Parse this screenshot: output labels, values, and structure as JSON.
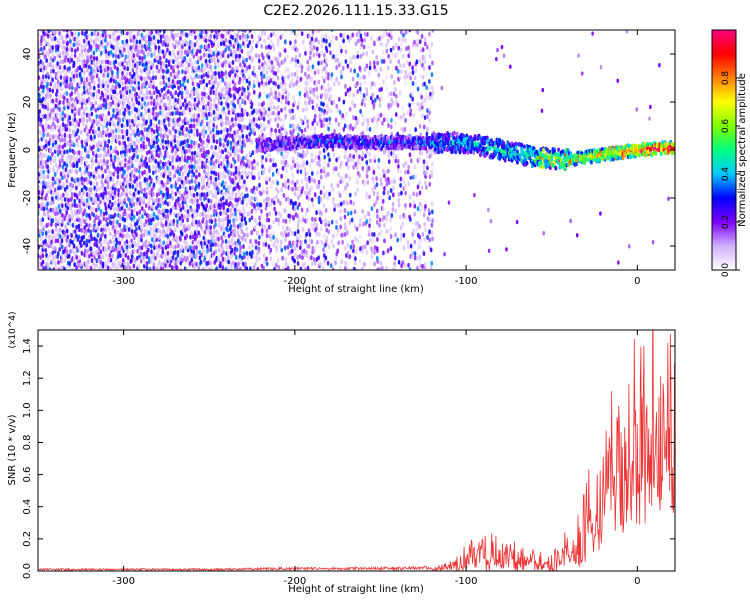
{
  "title": "C2E2.2026.111.15.33.G15",
  "chart_data": [
    {
      "type": "heatmap",
      "xlabel": "Height of straight line (km)",
      "ylabel": "Frequency (Hz)",
      "xlim": [
        -350,
        22
      ],
      "ylim": [
        -50,
        50
      ],
      "x_ticks": [
        -300,
        -200,
        -100,
        0
      ],
      "y_ticks": [
        -40,
        -20,
        0,
        20,
        40
      ],
      "colorbar": {
        "label": "Normalized spectral amplitude",
        "range": [
          0.0,
          1.0
        ],
        "ticks": [
          0.0,
          0.2,
          0.4,
          0.6,
          0.8
        ],
        "colors": [
          "#ffffff",
          "#d0b0ff",
          "#8000ff",
          "#0000ff",
          "#00c8ff",
          "#00ff80",
          "#80ff00",
          "#ffff00",
          "#ff8000",
          "#ff0000",
          "#ff0080"
        ]
      },
      "ridge": {
        "x": [
          -220,
          -200,
          -180,
          -160,
          -140,
          -120,
          -100,
          -80,
          -60,
          -40,
          -20,
          0,
          20
        ],
        "frequency_hz": [
          2,
          3,
          4,
          3,
          3,
          3,
          3,
          0,
          -3,
          -4,
          -2,
          0,
          1
        ],
        "amplitude": [
          0.25,
          0.25,
          0.3,
          0.3,
          0.3,
          0.35,
          0.4,
          0.45,
          0.5,
          0.6,
          0.7,
          0.8,
          0.85
        ]
      },
      "grid": false
    },
    {
      "type": "line",
      "xlabel": "Height of straight line (km)",
      "ylabel": "SNR (10 * v/v)",
      "y_multiplier": "(x10^4)",
      "xlim": [
        -350,
        22
      ],
      "ylim": [
        0,
        1.5
      ],
      "x_ticks": [
        -300,
        -200,
        -100,
        0
      ],
      "y_ticks": [
        0.0,
        0.2,
        0.4,
        0.6,
        0.8,
        1.0,
        1.2,
        1.4
      ],
      "line_color": "#ee3333",
      "series": [
        {
          "x": [
            -350,
            -300,
            -250,
            -200,
            -150,
            -120,
            -110,
            -100,
            -90,
            -80,
            -70,
            -60,
            -50,
            -40,
            -35,
            -30,
            -25,
            -20,
            -15,
            -10,
            -5,
            0,
            5,
            10,
            15,
            20
          ],
          "values": [
            0.01,
            0.01,
            0.01,
            0.015,
            0.015,
            0.02,
            0.05,
            0.12,
            0.2,
            0.18,
            0.14,
            0.1,
            0.08,
            0.18,
            0.3,
            0.4,
            0.35,
            0.5,
            0.65,
            0.7,
            0.8,
            0.85,
            0.95,
            1.15,
            1.1,
            1.2
          ]
        }
      ],
      "grid": false
    }
  ]
}
